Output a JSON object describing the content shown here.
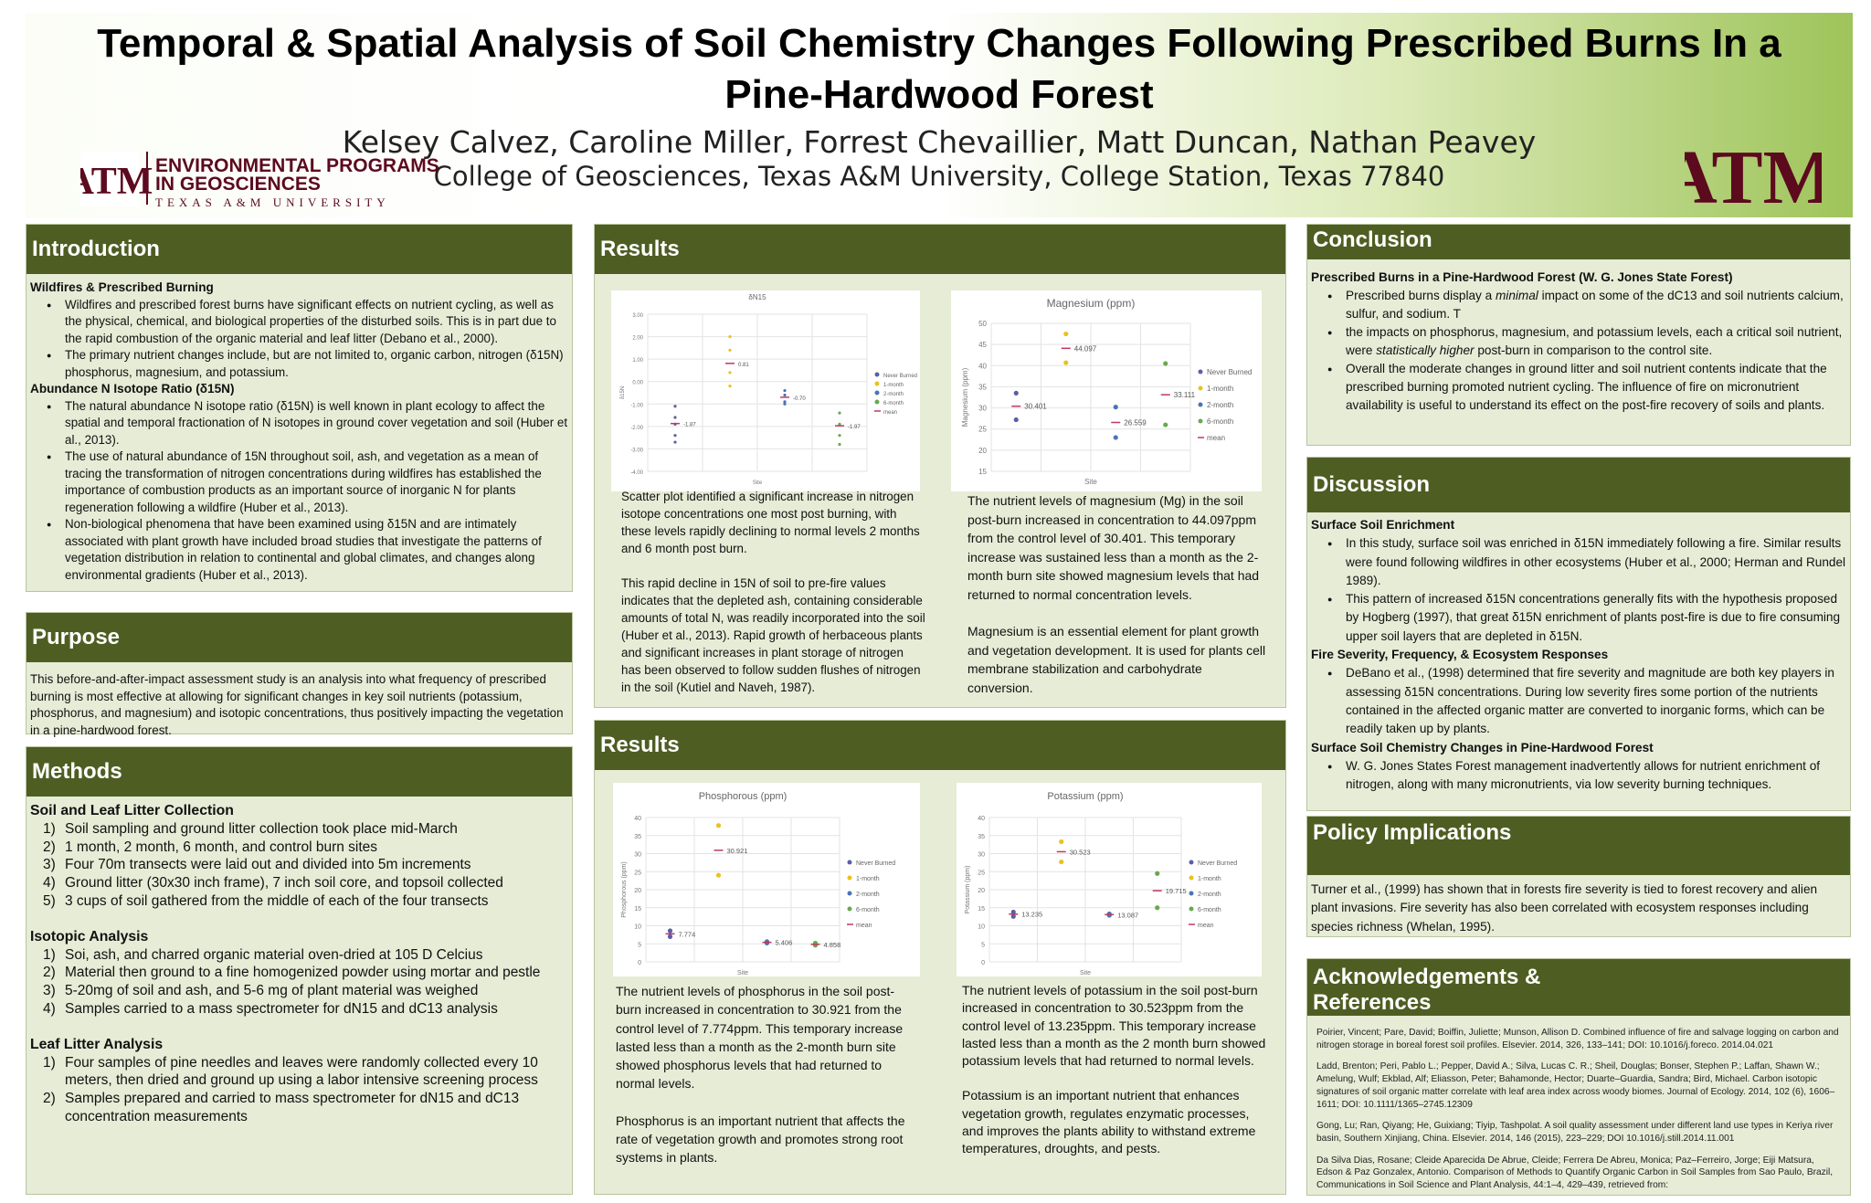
{
  "header": {
    "title_line1": "Temporal & Spatial Analysis of Soil Chemistry Changes Following Prescribed Burns In a",
    "title_line2": "Pine-Hardwood Forest",
    "authors": "Kelsey Calvez, Caroline Miller, Forrest Chevaillier, Matt Duncan, Nathan Peavey",
    "affiliation": "College of Geosciences, Texas A&M University, College Station, Texas 77840",
    "logo_left_line1": "ENVIRONMENTAL PROGRAMS",
    "logo_left_line2": "IN GEOSCIENCES",
    "logo_left_line3": "TEXAS A&M UNIVERSITY",
    "logo_mark": "ATM"
  },
  "colors": {
    "panel_header": "#4e5e22",
    "panel_bg": "#e6ecd6",
    "maroon": "#5c0a1e"
  },
  "introduction": {
    "heading": "Introduction",
    "sub1": "Wildfires & Prescribed Burning",
    "b1": "Wildfires and prescribed forest burns have significant effects on nutrient cycling, as well as the physical, chemical, and biological properties of the disturbed soils. This is in part due to the rapid combustion of the organic material and leaf litter (Debano et al., 2000).",
    "b2": "The primary nutrient changes include, but are not limited to, organic carbon, nitrogen (δ15N) phosphorus, magnesium, and potassium.",
    "sub2": "Abundance N Isotope Ratio (δ15N)",
    "b3": "The natural abundance N isotope ratio (δ15N) is well known in plant ecology to affect the spatial and temporal fractionation of N isotopes in ground cover vegetation and soil (Huber et al., 2013).",
    "b4": "The use of natural abundance of 15N throughout soil, ash, and vegetation as a mean of tracing the transformation of nitrogen concentrations during wildfires has established the importance of combustion products as an important  source of inorganic N for plants regeneration following a wildfire (Huber et al., 2013).",
    "b5": "Non-biological phenomena that have been examined using δ15N and are intimately associated with plant growth have included broad studies that investigate the patterns of vegetation distribution in relation to continental and global climates, and changes along environmental gradients (Huber et al., 2013)."
  },
  "purpose": {
    "heading": "Purpose",
    "text": "This before-and-after-impact assessment study is an analysis into what frequency of prescribed burning is most effective at allowing for significant changes in key soil nutrients (potassium, phosphorus, and magnesium) and isotopic concentrations, thus positively impacting the vegetation in a pine-hardwood forest."
  },
  "methods": {
    "heading": "Methods",
    "sub1": "Soil and Leaf Litter Collection",
    "s1": [
      "Soil sampling and ground litter collection took place mid-March",
      "1 month, 2 month, 6 month, and control burn sites",
      "Four 70m transects were laid out and divided into 5m increments",
      "Ground litter (30x30 inch frame), 7 inch soil core, and topsoil collected",
      "3 cups of soil gathered from the middle of each of the four transects"
    ],
    "sub2": "Isotopic Analysis",
    "s2": [
      "Soi, ash, and charred organic material oven-dried at 105 D Celcius",
      "Material then ground to a fine homogenized powder using mortar and pestle",
      "5-20mg of soil and ash, and 5-6 mg of plant material was weighed",
      "Samples carried to a mass spectrometer for dN15 and dC13 analysis"
    ],
    "sub3": "Leaf Litter Analysis",
    "s3": [
      "Four samples of pine needles and leaves  were randomly  collected every 10 meters, then dried and ground up using a labor intensive screening process",
      "Samples prepared and carried to mass spectrometer for dN15 and dC13 concentration measurements"
    ],
    "nums": [
      "1)",
      "2)",
      "3)",
      "4)",
      "5)"
    ]
  },
  "results1": {
    "heading": "Results",
    "n15_text": "Scatter plot identified a significant increase in nitrogen isotope concentrations one most post burning, with these levels rapidly declining to normal levels 2 months and 6 month post burn.",
    "n15_text2": "This rapid decline in 15N of soil to pre-fire values indicates that the depleted ash, containing considerable amounts of total N, was readily incorporated into the soil (Huber et al., 2013). Rapid growth of herbaceous plants and significant increases in plant storage of nitrogen has been observed to follow sudden flushes of nitrogen in the soil (Kutiel and Naveh, 1987).",
    "mg_text": "The nutrient levels of magnesium (Mg) in the soil post-burn increased in concentration to 44.097ppm from the control level of 30.401. This temporary increase was sustained less than a month as the 2-month burn site showed magnesium levels that had returned to normal concentration levels.",
    "mg_text2": "Magnesium is an essential element for plant growth and vegetation development. It is used for plants cell membrane stabilization and carbohydrate conversion."
  },
  "results2": {
    "heading": "Results",
    "p_text": "The nutrient levels of phosphorus in the soil post-burn increased in concentration to 30.921 from the control level of 7.774ppm. This temporary increase lasted less than a month as the 2-month burn site showed phosphorus levels that had returned to normal levels.",
    "p_text2": "Phosphorus is an important nutrient that affects the rate of vegetation growth and promotes strong root systems in plants.",
    "k_text": "The nutrient levels of potassium in the soil post-burn increased in concentration to 30.523ppm from the control level of 13.235ppm. This temporary increase lasted less than a month as the 2 month burn showed potassium levels that had returned to normal levels.",
    "k_text2": "Potassium is an important nutrient that enhances vegetation growth, regulates enzymatic processes, and  improves the plants ability to withstand extreme temperatures, droughts, and pests."
  },
  "conclusion": {
    "heading": "Conclusion",
    "sub": "Prescribed Burns in a Pine-Hardwood Forest (W. G. Jones State Forest)",
    "b1a": "Prescribed burns display a ",
    "b1em": "minimal",
    "b1b": " impact on some of the dC13 and soil nutrients calcium, sulfur, and sodium. T",
    "b2a": "the impacts on phosphorus, magnesium, and potassium  levels, each a critical soil nutrient, were ",
    "b2em": "statistically higher",
    "b2b": " post-burn in comparison to the control site.",
    "b3": "Overall the moderate changes in ground litter and soil nutrient contents indicate that the prescribed burning promoted nutrient cycling. The influence of fire on micronutrient availability is useful to understand its effect on the post-fire recovery of soils and plants."
  },
  "discussion": {
    "heading": "Discussion",
    "sub1": "Surface Soil Enrichment",
    "b1": "In this study, surface soil was enriched in δ15N immediately following a fire. Similar results were found following wildfires in other ecosystems (Huber et al., 2000; Herman and Rundel 1989).",
    "b2": "This pattern of increased δ15N concentrations generally fits with the hypothesis proposed by Hogberg (1997), that great δ15N enrichment of plants post-fire is due to fire consuming upper soil layers that are depleted in δ15N.",
    "sub2": "Fire Severity, Frequency, & Ecosystem Responses",
    "b3": "DeBano et al., (1998) determined that fire severity and magnitude are both key players in assessing δ15N concentrations. During low severity fires some portion of the nutrients contained in the affected organic matter are converted to inorganic forms, which can be readily taken up by plants.",
    "sub3": "Surface Soil Chemistry Changes in Pine-Hardwood Forest",
    "b4": "W. G. Jones States Forest management inadvertently allows for nutrient enrichment of nitrogen, along with many micronutrients, via low severity burning techniques."
  },
  "policy": {
    "heading": "Policy Implications",
    "text": "Turner et al., (1999) has shown that in forests fire severity is tied to forest recovery and alien plant invasions. Fire severity has also been correlated with ecosystem responses including species richness (Whelan, 1995)."
  },
  "acknowledgements": {
    "heading_line1": "Acknowledgements &",
    "heading_line2": "References",
    "refs": [
      "Poirier, Vincent; Pare, David; Boiffin, Juliette; Munson, Allison D. Combined influence of fire and salvage logging on carbon and nitrogen storage in boreal forest soil profiles. Elsevier. 2014, 326, 133–141; DOI: 10.1016/j.foreco. 2014.04.021",
      "Ladd, Brenton; Peri, Pablo L.; Pepper, David A.; Silva, Lucas C. R.; Sheil, Douglas; Bonser, Stephen P.; Laffan, Shawn W.; Amelung, Wulf; Ekblad, Alf; Eliasson, Peter; Bahamonde, Hector; Duarte–Guardia, Sandra; Bird, Michael. Carbon isotopic signatures of soil organic matter correlate with leaf area index across woody biomes. Journal of Ecology. 2014, 102 (6), 1606–1611; DOI: 10.1111/1365–2745.12309",
      "Gong, Lu; Ran, Qiyang; He, Guixiang; Tiyip, Tashpolat. A soil quality assessment under different land use types in Keriya river basin, Southern Xinjiang, China. Elsevier. 2014, 146 (2015), 223–229; DOI 10.1016/j.still.2014.11.001",
      "Da Silva Dias, Rosane; Cleide Aparecida De Abrue, Cleide; Ferrera De Abreu, Monica; Paz–Ferreiro, Jorge; Eiji Matsura, Edson & Paz Gonzalex, Antonio. Comparison of Methods to Quantify Organic Carbon in Soil Samples from Sao Paulo, Brazil, Communications in Soil Science and Plant Analysis, 44:1–4, 429–439, retrieved from:"
    ]
  },
  "chart_data": [
    {
      "type": "scatter",
      "title": "δN15",
      "xlabel": "Site",
      "ylabel": "δ15N",
      "ylim": [
        -4.0,
        3.0
      ],
      "yticks": [
        "3.00",
        "2.00",
        "1.00",
        "0.00",
        "-1.00",
        "-2.00",
        "-3.00",
        "-4.00"
      ],
      "legend": [
        "Never Burned",
        "1-month",
        "2-month",
        "6-month",
        "mean"
      ],
      "series": [
        {
          "name": "Never Burned",
          "color": "#5b5ea6",
          "values": [
            -1.1,
            -1.6,
            -1.9,
            -2.4,
            -2.7
          ]
        },
        {
          "name": "1-month",
          "color": "#e8c21e",
          "values": [
            2.0,
            1.4,
            0.4,
            -0.2
          ]
        },
        {
          "name": "2-month",
          "color": "#4a73b8",
          "values": [
            -0.4,
            -0.6,
            -0.9,
            -1.0
          ]
        },
        {
          "name": "6-month",
          "color": "#6aa84f",
          "values": [
            -1.4,
            -1.9,
            -2.4,
            -2.8
          ]
        }
      ],
      "means": [
        -1.87,
        0.81,
        -0.7,
        -1.97
      ],
      "mean_labels": [
        "-1.87",
        "0.81",
        "-0.70",
        "-1.97"
      ],
      "mean_color": "#c0395e"
    },
    {
      "type": "scatter",
      "title": "Magnesium (ppm)",
      "xlabel": "Site",
      "ylabel": "Magnesium (ppm)",
      "ylim": [
        15,
        50
      ],
      "yticks": [
        "50",
        "45",
        "40",
        "35",
        "30",
        "25",
        "20",
        "15"
      ],
      "legend": [
        "Never Burned",
        "1-month",
        "2-month",
        "6-month",
        "mean"
      ],
      "series": [
        {
          "name": "Never Burned",
          "color": "#5b5ea6",
          "values": [
            33.5,
            27.2
          ]
        },
        {
          "name": "1-month",
          "color": "#e8c21e",
          "values": [
            47.5,
            40.7
          ]
        },
        {
          "name": "2-month",
          "color": "#4a73b8",
          "values": [
            30.2,
            23.0
          ]
        },
        {
          "name": "6-month",
          "color": "#6aa84f",
          "values": [
            40.5,
            26.0
          ]
        }
      ],
      "means": [
        30.401,
        44.097,
        26.559,
        33.111
      ],
      "mean_labels": [
        "30.401",
        "44.097",
        "26.559",
        "33.111"
      ],
      "mean_color": "#c0395e"
    },
    {
      "type": "scatter",
      "title": "Phosphorous (ppm)",
      "xlabel": "Site",
      "ylabel": "Phosphorous (ppm)",
      "ylim": [
        0,
        40
      ],
      "yticks": [
        "40",
        "35",
        "30",
        "25",
        "20",
        "15",
        "10",
        "5",
        "0"
      ],
      "legend": [
        "Never Burned",
        "1-month",
        "2-month",
        "6-month",
        "mean"
      ],
      "series": [
        {
          "name": "Never Burned",
          "color": "#5b5ea6",
          "values": [
            8.6,
            7.0
          ]
        },
        {
          "name": "1-month",
          "color": "#e8c21e",
          "values": [
            37.8,
            24.0
          ]
        },
        {
          "name": "2-month",
          "color": "#4a73b8",
          "values": [
            5.6,
            5.2
          ]
        },
        {
          "name": "6-month",
          "color": "#6aa84f",
          "values": [
            5.2,
            4.6
          ]
        }
      ],
      "means": [
        7.774,
        30.921,
        5.406,
        4.858
      ],
      "mean_labels": [
        "7.774",
        "30.921",
        "5.406",
        "4.858"
      ],
      "mean_color": "#c0395e"
    },
    {
      "type": "scatter",
      "title": "Potassium (ppm)",
      "xlabel": "Site",
      "ylabel": "Potassium (ppm)",
      "ylim": [
        0,
        40
      ],
      "yticks": [
        "40",
        "35",
        "30",
        "25",
        "20",
        "15",
        "10",
        "5",
        "0"
      ],
      "legend": [
        "Never Burned",
        "1-month",
        "2-month",
        "6-month",
        "mean"
      ],
      "series": [
        {
          "name": "Never Burned",
          "color": "#5b5ea6",
          "values": [
            13.8,
            12.6
          ]
        },
        {
          "name": "1-month",
          "color": "#e8c21e",
          "values": [
            33.3,
            27.7
          ]
        },
        {
          "name": "2-month",
          "color": "#4a73b8",
          "values": [
            13.3,
            12.9
          ]
        },
        {
          "name": "6-month",
          "color": "#6aa84f",
          "values": [
            24.5,
            15.0
          ]
        }
      ],
      "means": [
        13.235,
        30.523,
        13.087,
        19.715
      ],
      "mean_labels": [
        "13.235",
        "30.523",
        "13.087",
        "19.715"
      ],
      "mean_color": "#c0395e"
    }
  ]
}
